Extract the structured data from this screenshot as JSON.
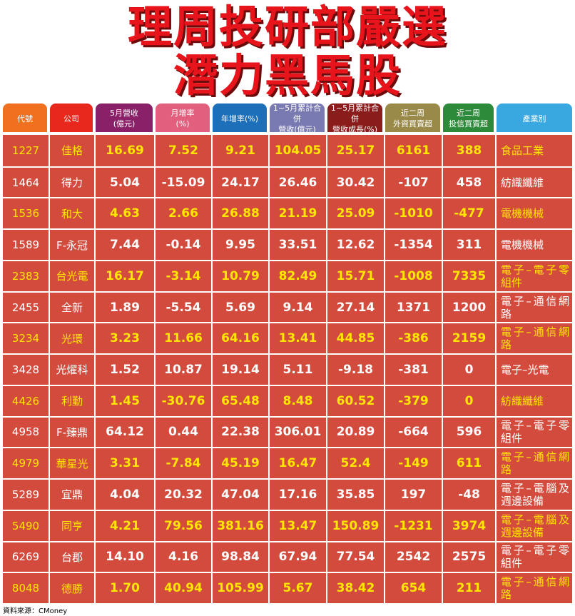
{
  "title": {
    "line1": "理周投研部嚴選",
    "line2": "潛力黑馬股"
  },
  "headers": [
    {
      "label": "代號",
      "color": "#f07020"
    },
    {
      "label": "公司",
      "color": "#e8281c"
    },
    {
      "label": "5月營收\n(億元)",
      "color": "#8a2168"
    },
    {
      "label": "月增率\n(%)",
      "color": "#e2607e"
    },
    {
      "label": "年增率(%)",
      "color": "#1c6fb8"
    },
    {
      "label": "1~5月累計合併\n營收(億元)",
      "color": "#7a7ab2"
    },
    {
      "label": "1~5月累計合併\n營收成長(%)",
      "color": "#8a1c1c"
    },
    {
      "label": "近二周\n外資買賣超",
      "color": "#9a8a4a"
    },
    {
      "label": "近二周\n投信買賣超",
      "color": "#2c8a3a"
    },
    {
      "label": "產業別",
      "color": "#3aa8e0"
    }
  ],
  "rows": [
    [
      "1227",
      "佳格",
      "16.69",
      "7.52",
      "9.21",
      "104.05",
      "25.17",
      "6161",
      "388",
      "食品工業"
    ],
    [
      "1464",
      "得力",
      "5.04",
      "-15.09",
      "24.17",
      "26.46",
      "30.42",
      "-107",
      "458",
      "紡織纖維"
    ],
    [
      "1536",
      "和大",
      "4.63",
      "2.66",
      "26.88",
      "21.19",
      "25.09",
      "-1010",
      "-477",
      "電機機械"
    ],
    [
      "1589",
      "F-永冠",
      "7.44",
      "-0.14",
      "9.95",
      "33.51",
      "12.62",
      "-1354",
      "311",
      "電機機械"
    ],
    [
      "2383",
      "台光電",
      "16.17",
      "-3.14",
      "10.79",
      "82.49",
      "15.71",
      "-1008",
      "7335",
      "電子–電子零組件"
    ],
    [
      "2455",
      "全新",
      "1.89",
      "-5.54",
      "5.69",
      "9.14",
      "27.14",
      "1371",
      "1200",
      "電子–通信網路"
    ],
    [
      "3234",
      "光環",
      "3.23",
      "11.66",
      "64.16",
      "13.41",
      "44.85",
      "-386",
      "2159",
      "電子–通信網路"
    ],
    [
      "3428",
      "光燿科",
      "1.52",
      "10.87",
      "19.14",
      "5.11",
      "-9.18",
      "-381",
      "0",
      "電子–光電"
    ],
    [
      "4426",
      "利勤",
      "1.45",
      "-30.76",
      "65.48",
      "8.48",
      "60.52",
      "-379",
      "0",
      "紡織纖維"
    ],
    [
      "4958",
      "F-臻鼎",
      "64.12",
      "0.44",
      "22.38",
      "306.01",
      "20.89",
      "-664",
      "596",
      "電子–電子零組件"
    ],
    [
      "4979",
      "華星光",
      "3.31",
      "-7.84",
      "45.19",
      "16.47",
      "52.4",
      "-149",
      "611",
      "電子–通信網路"
    ],
    [
      "5289",
      "宜鼎",
      "4.04",
      "20.32",
      "47.04",
      "17.16",
      "35.85",
      "197",
      "-48",
      "電子–電腦及週邊設備"
    ],
    [
      "5490",
      "同亨",
      "4.21",
      "79.56",
      "381.16",
      "13.47",
      "150.89",
      "-1231",
      "3974",
      "電子–電腦及週邊設備"
    ],
    [
      "6269",
      "台郡",
      "14.10",
      "4.16",
      "98.84",
      "67.94",
      "77.54",
      "2542",
      "2575",
      "電子–電子零組件"
    ],
    [
      "8048",
      "德勝",
      "1.70",
      "40.94",
      "105.99",
      "5.67",
      "38.42",
      "654",
      "211",
      "電子–通信網路"
    ]
  ],
  "source": "資料來源：CMoney"
}
